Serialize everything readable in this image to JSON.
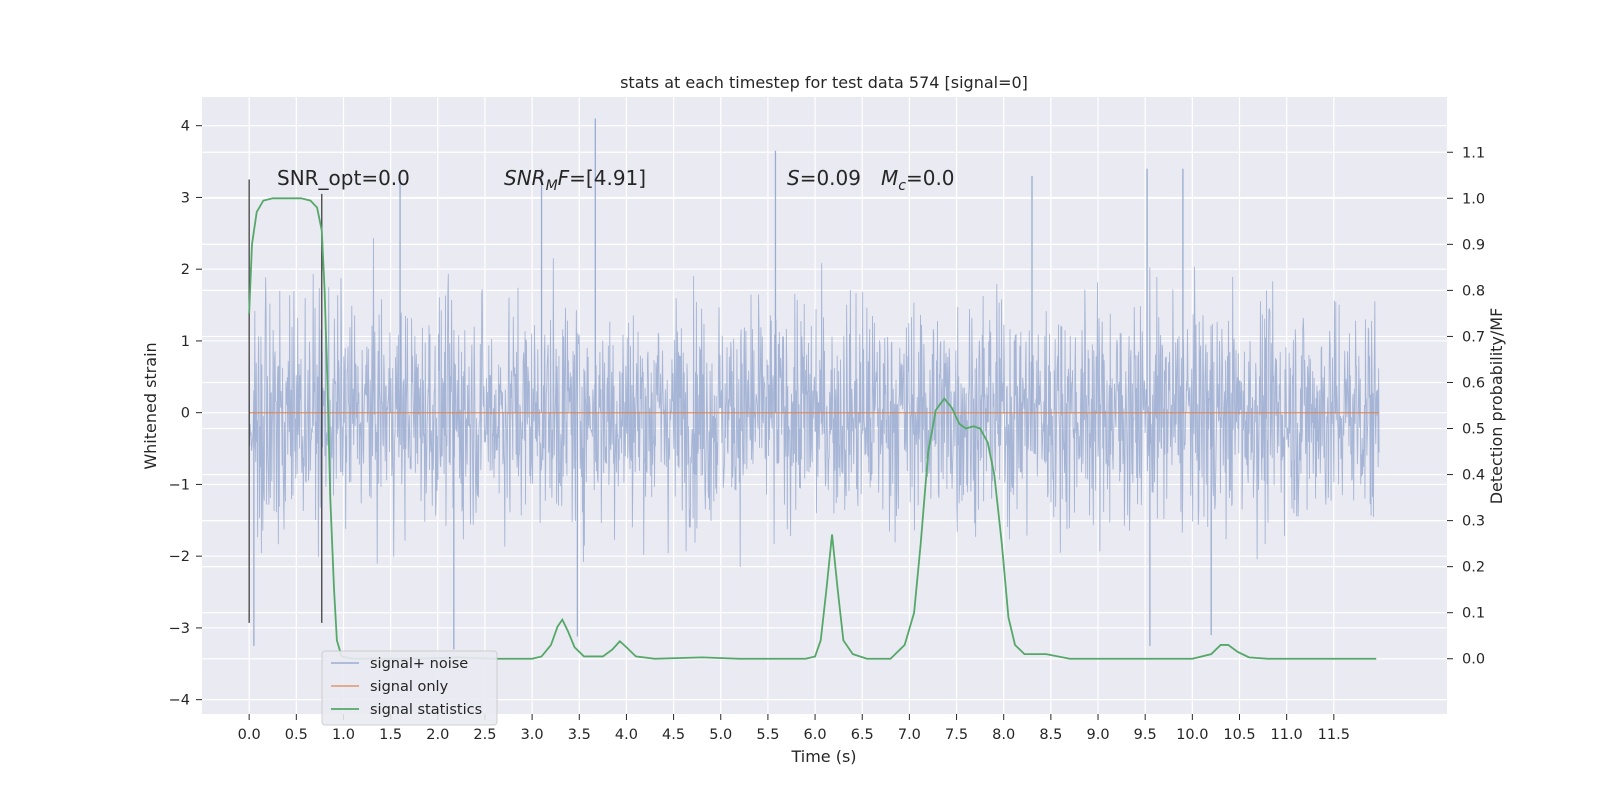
{
  "chart_data": {
    "type": "line",
    "title": "stats at each timestep for test data 574 [signal=0]",
    "xlabel": "Time (s)",
    "ylabel": "Whitened strain",
    "y2label": "Detection probability/MF",
    "xlim": [
      -0.5,
      12.7
    ],
    "ylim": [
      -4.2,
      4.4
    ],
    "y2lim": [
      -0.12,
      1.22
    ],
    "x_ticks": [
      "0.0",
      "0.5",
      "1.0",
      "1.5",
      "2.0",
      "2.5",
      "3.0",
      "3.5",
      "4.0",
      "4.5",
      "5.0",
      "5.5",
      "6.0",
      "6.5",
      "7.0",
      "7.5",
      "8.0",
      "8.5",
      "9.0",
      "9.5",
      "10.0",
      "10.5",
      "11.0",
      "11.5"
    ],
    "y_ticks": [
      "4",
      "3",
      "2",
      "1",
      "0",
      "−1",
      "−2",
      "−3",
      "−4"
    ],
    "y2_ticks": [
      "1.1",
      "1.0",
      "0.9",
      "0.8",
      "0.7",
      "0.6",
      "0.5",
      "0.4",
      "0.3",
      "0.2",
      "0.1",
      "0.0"
    ],
    "grid": true,
    "legend_position": "lower-left",
    "annotations": {
      "snr_opt": "SNR_opt=0.0",
      "snr_mf_sym": "SNR",
      "snr_mf_sub": "M",
      "snr_mf_rest": "F=[4.91]",
      "s_sym": "S",
      "s_val": "=0.09",
      "mc_sym": "M",
      "mc_sub": "c",
      "mc_val": "=0.0"
    },
    "series": [
      {
        "name": "signal+ noise",
        "color": "#9aacd0",
        "description_values": "dense noise, whitened strain in approx [-3.3, 4.1] over t=0..12",
        "t_range": [
          0.0,
          11.98
        ],
        "typical_abs": 1.4,
        "peaks": [
          {
            "x": 1.6,
            "y": 3.2
          },
          {
            "x": 3.67,
            "y": 4.1
          },
          {
            "x": 3.1,
            "y": 3.4
          },
          {
            "x": 5.58,
            "y": 3.65
          },
          {
            "x": 8.3,
            "y": 3.3
          },
          {
            "x": 9.52,
            "y": 3.4
          },
          {
            "x": 9.9,
            "y": 3.4
          },
          {
            "x": 2.17,
            "y": -3.3
          },
          {
            "x": 9.55,
            "y": -3.25
          },
          {
            "x": 0.05,
            "y": -3.25
          },
          {
            "x": 3.48,
            "y": -3.12
          },
          {
            "x": 10.2,
            "y": -3.1
          }
        ]
      },
      {
        "name": "signal only",
        "color": "#dd8452",
        "points": [
          [
            0.0,
            0.0
          ],
          [
            11.98,
            0.0
          ]
        ]
      },
      {
        "name": "signal statistics",
        "color": "#55a868",
        "axis": "right",
        "points": [
          [
            0.0,
            0.75
          ],
          [
            0.03,
            0.9
          ],
          [
            0.08,
            0.97
          ],
          [
            0.15,
            0.995
          ],
          [
            0.25,
            1.0
          ],
          [
            0.4,
            1.0
          ],
          [
            0.55,
            1.0
          ],
          [
            0.65,
            0.995
          ],
          [
            0.72,
            0.98
          ],
          [
            0.77,
            0.93
          ],
          [
            0.8,
            0.8
          ],
          [
            0.83,
            0.6
          ],
          [
            0.86,
            0.35
          ],
          [
            0.9,
            0.15
          ],
          [
            0.93,
            0.04
          ],
          [
            0.98,
            0.005
          ],
          [
            1.1,
            0.0
          ],
          [
            1.8,
            0.0
          ],
          [
            2.2,
            0.003
          ],
          [
            2.6,
            0.0
          ],
          [
            3.0,
            0.0
          ],
          [
            3.1,
            0.005
          ],
          [
            3.2,
            0.03
          ],
          [
            3.27,
            0.07
          ],
          [
            3.32,
            0.085
          ],
          [
            3.38,
            0.06
          ],
          [
            3.45,
            0.025
          ],
          [
            3.55,
            0.005
          ],
          [
            3.75,
            0.005
          ],
          [
            3.85,
            0.02
          ],
          [
            3.93,
            0.038
          ],
          [
            4.0,
            0.025
          ],
          [
            4.1,
            0.005
          ],
          [
            4.3,
            0.0
          ],
          [
            4.8,
            0.003
          ],
          [
            5.2,
            0.0
          ],
          [
            5.9,
            0.0
          ],
          [
            6.0,
            0.005
          ],
          [
            6.06,
            0.04
          ],
          [
            6.12,
            0.15
          ],
          [
            6.18,
            0.27
          ],
          [
            6.24,
            0.15
          ],
          [
            6.3,
            0.04
          ],
          [
            6.4,
            0.01
          ],
          [
            6.55,
            0.0
          ],
          [
            6.8,
            0.0
          ],
          [
            6.95,
            0.03
          ],
          [
            7.05,
            0.1
          ],
          [
            7.12,
            0.25
          ],
          [
            7.2,
            0.45
          ],
          [
            7.28,
            0.54
          ],
          [
            7.37,
            0.565
          ],
          [
            7.45,
            0.545
          ],
          [
            7.53,
            0.51
          ],
          [
            7.6,
            0.5
          ],
          [
            7.68,
            0.505
          ],
          [
            7.75,
            0.5
          ],
          [
            7.83,
            0.47
          ],
          [
            7.9,
            0.4
          ],
          [
            7.98,
            0.25
          ],
          [
            8.05,
            0.09
          ],
          [
            8.12,
            0.03
          ],
          [
            8.22,
            0.01
          ],
          [
            8.45,
            0.01
          ],
          [
            8.7,
            0.0
          ],
          [
            9.3,
            0.0
          ],
          [
            10.0,
            0.0
          ],
          [
            10.2,
            0.01
          ],
          [
            10.3,
            0.03
          ],
          [
            10.38,
            0.03
          ],
          [
            10.48,
            0.015
          ],
          [
            10.6,
            0.003
          ],
          [
            10.8,
            0.0
          ],
          [
            11.5,
            0.0
          ],
          [
            11.95,
            0.0
          ]
        ]
      }
    ],
    "vertical_lines": [
      {
        "x": 0.0,
        "y_range": [
          -2.93,
          3.25
        ]
      },
      {
        "x": 0.77,
        "y_range": [
          -2.93,
          3.05
        ]
      }
    ]
  }
}
